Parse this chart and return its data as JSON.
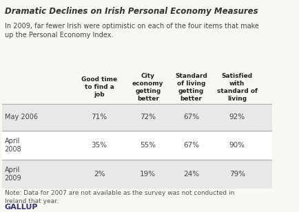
{
  "title": "Dramatic Declines on Irish Personal Economy Measures",
  "subtitle": "In 2009, far fewer Irish were optimistic on each of the four items that make\nup the Personal Economy Index.",
  "col_headers": [
    "Good time\nto find a\njob",
    "City\neconomy\ngetting\nbetter",
    "Standard\nof living\ngetting\nbetter",
    "Satisfied\nwith\nstandard of\nliving"
  ],
  "row_labels": [
    "May 2006",
    "April\n2008",
    "April\n2009"
  ],
  "data": [
    [
      "71%",
      "72%",
      "67%",
      "92%"
    ],
    [
      "35%",
      "55%",
      "67%",
      "90%"
    ],
    [
      "2%",
      "19%",
      "24%",
      "79%"
    ]
  ],
  "row_bg_colors": [
    "#e8e8e8",
    "#ffffff",
    "#e8e8e8"
  ],
  "note": "Note: Data for 2007 are not available as the survey was not conducted in\nIreland that year.",
  "source": "GALLUP",
  "bg_color": "#f9f7f2",
  "title_color": "#333333",
  "text_color": "#444444",
  "header_color": "#222222",
  "note_color": "#555555",
  "source_color": "#333366"
}
